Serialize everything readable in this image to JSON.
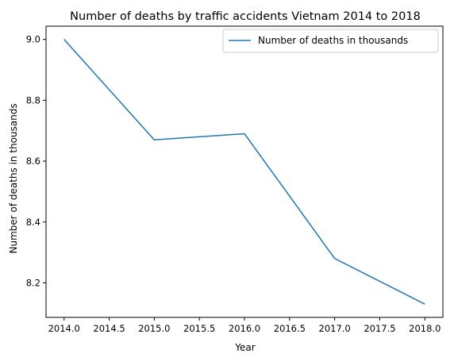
{
  "chart_data": {
    "type": "line",
    "title": "Number of deaths by traffic accidents Vietnam 2014 to 2018",
    "xlabel": "Year",
    "ylabel": "Number of deaths in thousands",
    "x": [
      2014,
      2015,
      2016,
      2017,
      2018
    ],
    "series": [
      {
        "name": "Number of deaths in thousands",
        "values": [
          9.0,
          8.67,
          8.69,
          8.28,
          8.13
        ],
        "color": "#1f77b4"
      }
    ],
    "xlim": [
      2013.8,
      2018.2
    ],
    "ylim": [
      8.0865,
      9.0435
    ],
    "xticks": [
      2014.0,
      2014.5,
      2015.0,
      2015.5,
      2016.0,
      2016.5,
      2017.0,
      2017.5,
      2018.0
    ],
    "xtick_labels": [
      "2014.0",
      "2014.5",
      "2015.0",
      "2015.5",
      "2016.0",
      "2016.5",
      "2017.0",
      "2017.5",
      "2018.0"
    ],
    "yticks": [
      8.2,
      8.4,
      8.6,
      8.8,
      9.0
    ],
    "ytick_labels": [
      "8.2",
      "8.4",
      "8.6",
      "8.8",
      "9.0"
    ],
    "grid": false,
    "legend_position": "top-right"
  }
}
